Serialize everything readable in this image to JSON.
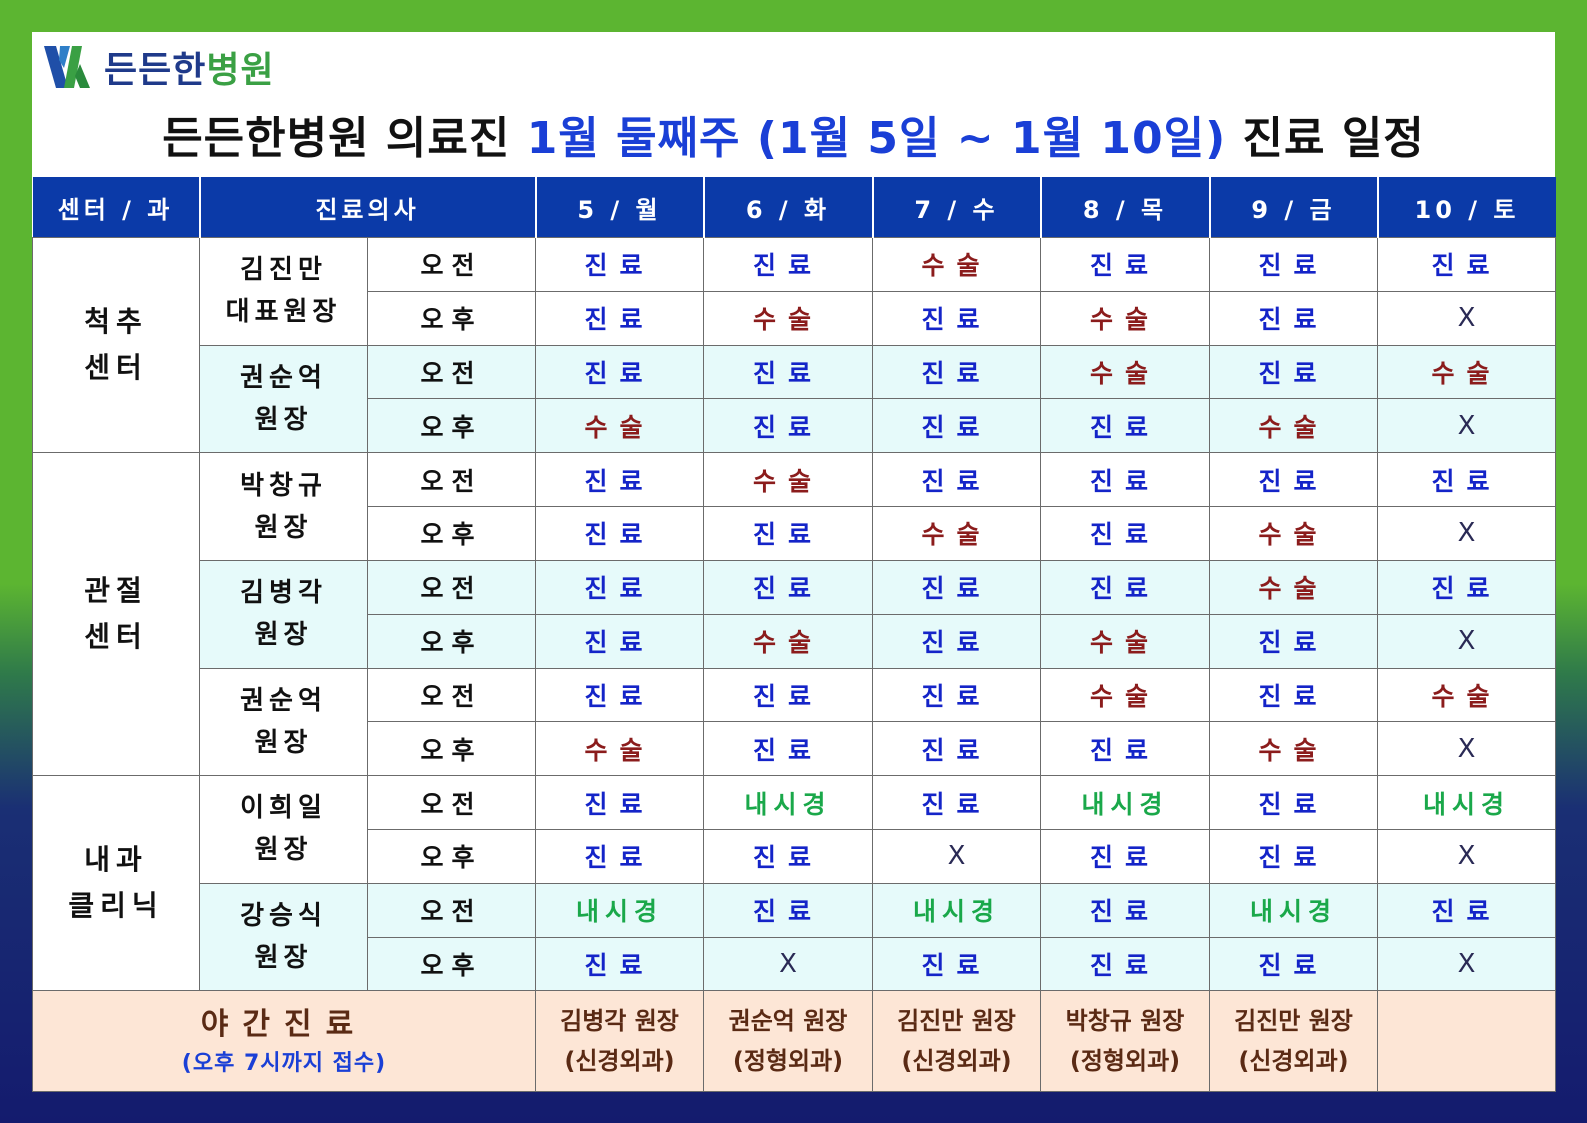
{
  "logo": {
    "text_part1": "든든한",
    "text_part2": "병원",
    "icon": "hospital-logo-icon"
  },
  "title": {
    "prefix": "든든한병원 의료진 ",
    "highlight": "1월 둘째주 (1월 5일 ~ 1월 10일)",
    "suffix": " 진료 일정"
  },
  "headers": {
    "center": "센터 / 과",
    "doctor": "진료의사",
    "days": [
      "5 / 월",
      "6 / 화",
      "7 / 수",
      "8 / 목",
      "9 / 금",
      "10 / 토"
    ]
  },
  "periods": {
    "am": "오전",
    "pm": "오후"
  },
  "centers": [
    {
      "name_line1": "척추",
      "name_line2": "센터",
      "doctors": [
        {
          "name_line1": "김진만",
          "name_line2": "대표원장",
          "am": [
            "진료",
            "진료",
            "수술",
            "진료",
            "진료",
            "진료"
          ],
          "pm": [
            "진료",
            "수술",
            "진료",
            "수술",
            "진료",
            "X"
          ]
        },
        {
          "name_line1": "권순억",
          "name_line2": "원장",
          "am": [
            "진료",
            "진료",
            "진료",
            "수술",
            "진료",
            "수술"
          ],
          "pm": [
            "수술",
            "진료",
            "진료",
            "진료",
            "수술",
            "X"
          ]
        }
      ]
    },
    {
      "name_line1": "관절",
      "name_line2": "센터",
      "doctors": [
        {
          "name_line1": "박창규",
          "name_line2": "원장",
          "am": [
            "진료",
            "수술",
            "진료",
            "진료",
            "진료",
            "진료"
          ],
          "pm": [
            "진료",
            "진료",
            "수술",
            "진료",
            "수술",
            "X"
          ]
        },
        {
          "name_line1": "김병각",
          "name_line2": "원장",
          "am": [
            "진료",
            "진료",
            "진료",
            "진료",
            "수술",
            "진료"
          ],
          "pm": [
            "진료",
            "수술",
            "진료",
            "수술",
            "진료",
            "X"
          ]
        },
        {
          "name_line1": "권순억",
          "name_line2": "원장",
          "am": [
            "진료",
            "진료",
            "진료",
            "수술",
            "진료",
            "수술"
          ],
          "pm": [
            "수술",
            "진료",
            "진료",
            "진료",
            "수술",
            "X"
          ]
        }
      ]
    },
    {
      "name_line1": "내과",
      "name_line2": "클리닉",
      "doctors": [
        {
          "name_line1": "이희일",
          "name_line2": "원장",
          "am": [
            "진료",
            "내시경",
            "진료",
            "내시경",
            "진료",
            "내시경"
          ],
          "pm": [
            "진료",
            "진료",
            "X",
            "진료",
            "진료",
            "X"
          ]
        },
        {
          "name_line1": "강승식",
          "name_line2": "원장",
          "am": [
            "내시경",
            "진료",
            "내시경",
            "진료",
            "내시경",
            "진료"
          ],
          "pm": [
            "진료",
            "X",
            "진료",
            "진료",
            "진료",
            "X"
          ]
        }
      ]
    }
  ],
  "night": {
    "label": "야간진료",
    "sub": "(오후 7시까지 접수)",
    "doctors": [
      {
        "name": "김병각 원장",
        "dept": "(신경외과)"
      },
      {
        "name": "권순억 원장",
        "dept": "(정형외과)"
      },
      {
        "name": "김진만 원장",
        "dept": "(신경외과)"
      },
      {
        "name": "박창규 원장",
        "dept": "(정형외과)"
      },
      {
        "name": "김진만 원장",
        "dept": "(신경외과)"
      },
      {
        "name": "",
        "dept": ""
      }
    ]
  },
  "colors": {
    "clinic": "#1424c8",
    "surgery": "#8b1c1c",
    "endoscopy": "#1aa84a",
    "header": "#0b3aa8",
    "alt_row": "#e6fafa",
    "night_row": "#fde6d6"
  }
}
